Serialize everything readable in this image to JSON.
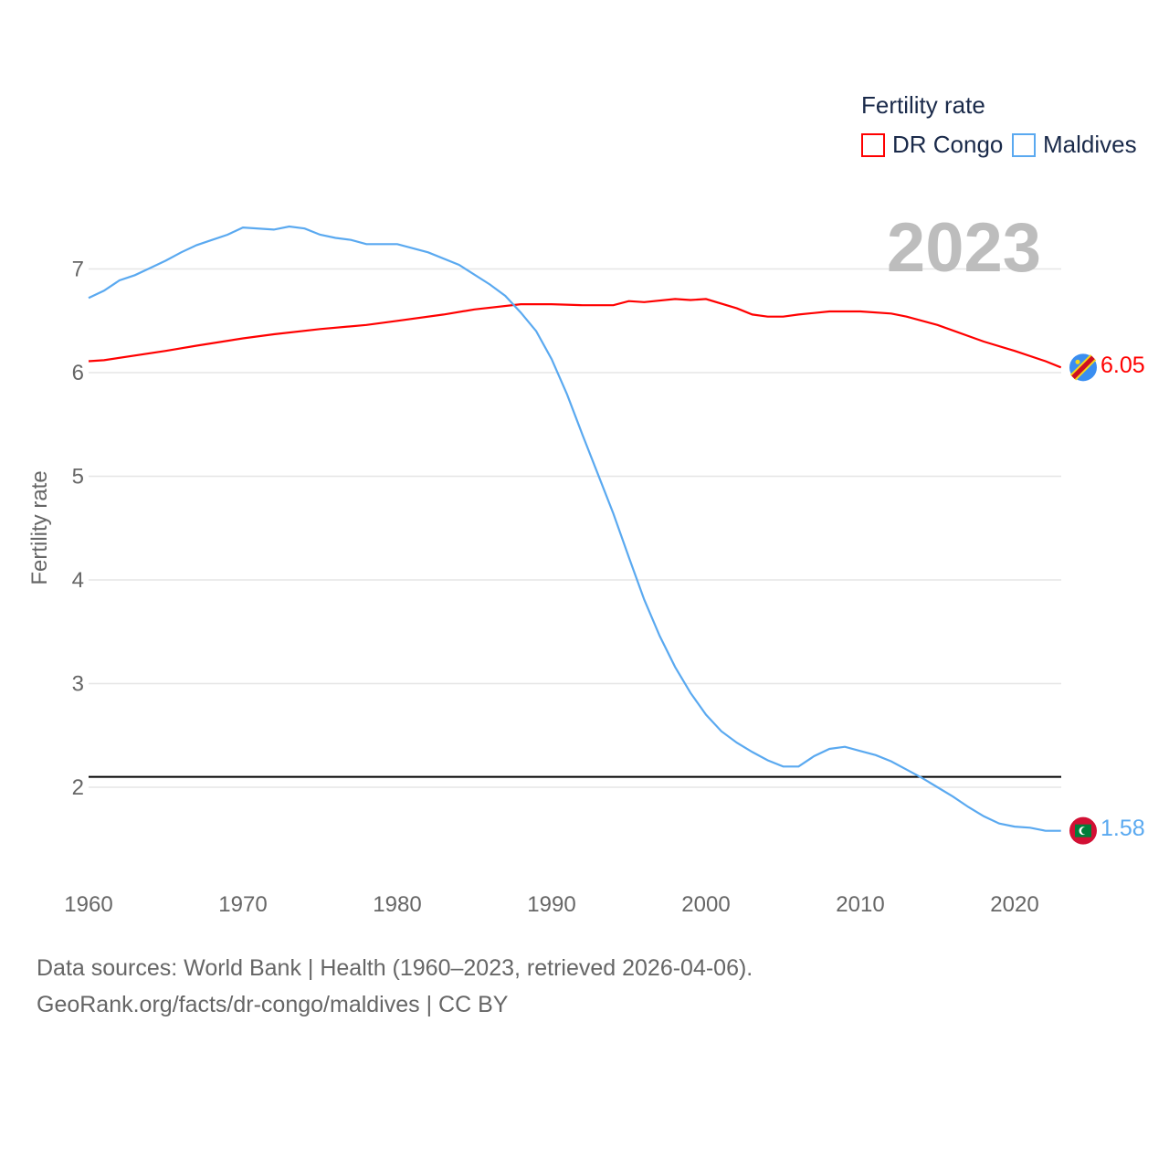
{
  "chart_data": {
    "type": "line",
    "title": "Fertility rate",
    "ylabel": "Fertility rate",
    "xlabel": "",
    "xlim": [
      1960,
      2023
    ],
    "ylim": [
      1.1,
      7.8
    ],
    "x_ticks": [
      "1960",
      "1970",
      "1980",
      "1990",
      "2000",
      "2010",
      "2020"
    ],
    "y_ticks": [
      "2",
      "3",
      "4",
      "5",
      "6",
      "7"
    ],
    "grid": true,
    "legend_placement": "top-right",
    "year_label": "2023",
    "reference_line": {
      "value": 2.1,
      "color": "#000000"
    },
    "series": [
      {
        "name": "DR Congo",
        "color": "#ff0000",
        "end_label": "6.05",
        "x": [
          1960,
          1961,
          1965,
          1967,
          1970,
          1972,
          1975,
          1978,
          1980,
          1983,
          1985,
          1988,
          1990,
          1992,
          1994,
          1995,
          1996,
          1998,
          1999,
          2000,
          2002,
          2003,
          2004,
          2005,
          2006,
          2008,
          2010,
          2012,
          2013,
          2015,
          2018,
          2020,
          2022,
          2023
        ],
        "y": [
          6.11,
          6.12,
          6.21,
          6.26,
          6.33,
          6.37,
          6.42,
          6.46,
          6.5,
          6.56,
          6.61,
          6.66,
          6.66,
          6.65,
          6.65,
          6.69,
          6.68,
          6.71,
          6.7,
          6.71,
          6.62,
          6.56,
          6.54,
          6.54,
          6.56,
          6.59,
          6.59,
          6.57,
          6.54,
          6.46,
          6.3,
          6.21,
          6.11,
          6.05
        ]
      },
      {
        "name": "Maldives",
        "color": "#5aa9f0",
        "end_label": "1.58",
        "x": [
          1960,
          1961,
          1962,
          1963,
          1964,
          1965,
          1966,
          1967,
          1968,
          1969,
          1970,
          1972,
          1973,
          1974,
          1975,
          1976,
          1977,
          1978,
          1980,
          1982,
          1984,
          1986,
          1987,
          1988,
          1989,
          1990,
          1991,
          1992,
          1993,
          1994,
          1995,
          1996,
          1997,
          1998,
          1999,
          2000,
          2001,
          2002,
          2003,
          2004,
          2005,
          2006,
          2007,
          2008,
          2009,
          2010,
          2011,
          2012,
          2013,
          2014,
          2015,
          2016,
          2017,
          2018,
          2019,
          2020,
          2021,
          2022,
          2023
        ],
        "y": [
          6.72,
          6.79,
          6.89,
          6.94,
          7.01,
          7.08,
          7.16,
          7.23,
          7.28,
          7.33,
          7.4,
          7.38,
          7.41,
          7.39,
          7.33,
          7.3,
          7.28,
          7.24,
          7.24,
          7.16,
          7.04,
          6.85,
          6.74,
          6.58,
          6.4,
          6.13,
          5.79,
          5.4,
          5.02,
          4.64,
          4.22,
          3.81,
          3.46,
          3.16,
          2.91,
          2.7,
          2.54,
          2.43,
          2.34,
          2.26,
          2.2,
          2.2,
          2.3,
          2.37,
          2.39,
          2.35,
          2.31,
          2.25,
          2.17,
          2.09,
          2.0,
          1.91,
          1.81,
          1.72,
          1.65,
          1.62,
          1.61,
          1.58,
          1.58
        ]
      }
    ]
  },
  "footer": {
    "line1": "Data sources: World Bank | Health (1960–2023, retrieved 2026-04-06).",
    "line2": "GeoRank.org/facts/dr-congo/maldives | CC BY"
  }
}
